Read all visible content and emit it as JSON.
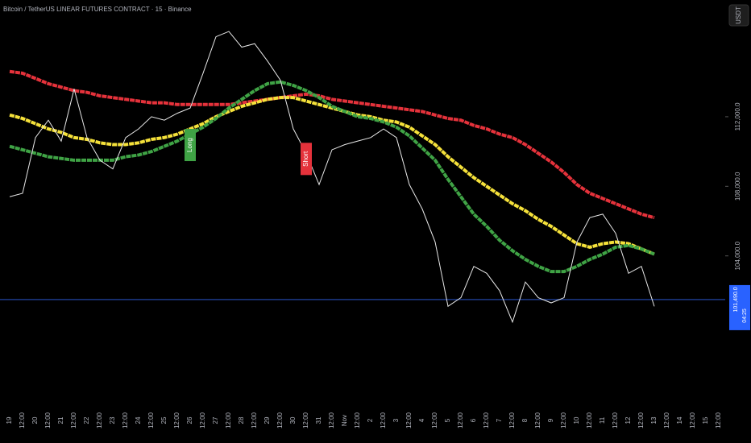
{
  "chart_data": {
    "type": "line",
    "title": "Bitcoin / TetherUS LINEAR FUTURES CONTRACT · 15 · Binance",
    "currency_button": "USDT",
    "categories": [
      "19",
      "12:00",
      "20",
      "12:00",
      "21",
      "12:00",
      "22",
      "12:00",
      "23",
      "12:00",
      "24",
      "12:00",
      "25",
      "12:00",
      "26",
      "12:00",
      "27",
      "12:00",
      "28",
      "12:00",
      "29",
      "12:00",
      "30",
      "12:00",
      "31",
      "12:00",
      "Nov",
      "12:00",
      "2",
      "12:00",
      "3",
      "12:00",
      "4",
      "12:00",
      "5",
      "12:00",
      "6",
      "12:00",
      "7",
      "12:00",
      "8",
      "12:00",
      "9",
      "12:00",
      "10",
      "12:00",
      "11",
      "12:00",
      "12",
      "12:00",
      "13",
      "12:00",
      "14",
      "12:00",
      "15",
      "12:00"
    ],
    "ylim": [
      95560,
      118710
    ],
    "yticks": [
      {
        "value": 104000,
        "label": "104,000.0"
      },
      {
        "value": 108000,
        "label": "108,000.0"
      },
      {
        "value": 112000,
        "label": "112,000.0"
      }
    ],
    "grid": false,
    "series": [
      {
        "color": "#e5323b",
        "width": 4,
        "values": [
          114600,
          114500,
          114200,
          113900,
          113700,
          113500,
          113400,
          113200,
          113100,
          113000,
          112900,
          112800,
          112800,
          112700,
          112700,
          112700,
          112700,
          112700,
          112800,
          112900,
          113000,
          113100,
          113200,
          113300,
          113200,
          113000,
          112900,
          112800,
          112700,
          112600,
          112500,
          112400,
          112300,
          112100,
          111900,
          111800,
          111500,
          111300,
          111000,
          110800,
          110400,
          109900,
          109400,
          108800,
          108100,
          107600,
          107300,
          107000,
          106700,
          106400,
          106200,
          null,
          null,
          null,
          null,
          null
        ]
      },
      {
        "color": "#f5e13a",
        "width": 4,
        "values": [
          112100,
          111900,
          111600,
          111300,
          111100,
          110800,
          110700,
          110500,
          110400,
          110400,
          110500,
          110700,
          110800,
          111000,
          111300,
          111600,
          112000,
          112300,
          112600,
          112800,
          113000,
          113100,
          113100,
          112900,
          112700,
          112500,
          112300,
          112100,
          112000,
          111800,
          111700,
          111400,
          110900,
          110400,
          109700,
          109100,
          108500,
          108000,
          107500,
          107000,
          106600,
          106100,
          105700,
          105200,
          104700,
          104500,
          104700,
          104800,
          104700,
          104400,
          104100,
          null,
          null,
          null,
          null,
          null
        ]
      },
      {
        "color": "#3fa345",
        "width": 4,
        "values": [
          110300,
          110100,
          109900,
          109700,
          109600,
          109500,
          109500,
          109500,
          109500,
          109700,
          109800,
          110000,
          110300,
          110600,
          111000,
          111400,
          111900,
          112500,
          113000,
          113500,
          113900,
          114000,
          113800,
          113500,
          113100,
          112600,
          112300,
          112000,
          111900,
          111700,
          111400,
          110900,
          110200,
          109500,
          108400,
          107400,
          106400,
          105700,
          104900,
          104300,
          103800,
          103400,
          103100,
          103100,
          103400,
          103800,
          104100,
          104500,
          104600,
          104400,
          104100,
          null,
          null,
          null,
          null,
          null
        ]
      },
      {
        "color": "#e8e8e8",
        "width": 1,
        "values": [
          107400,
          107600,
          110800,
          111800,
          110600,
          113600,
          110800,
          109500,
          109000,
          110800,
          111300,
          112000,
          111800,
          112200,
          112500,
          114500,
          116600,
          116900,
          116000,
          116200,
          115200,
          114100,
          111300,
          109900,
          108100,
          110100,
          110400,
          110600,
          110800,
          111300,
          110800,
          108100,
          106700,
          104800,
          101100,
          101600,
          103400,
          103000,
          102000,
          100200,
          102500,
          101600,
          101300,
          101600,
          104800,
          106200,
          106400,
          105300,
          103000,
          103400,
          101100,
          null,
          null,
          null,
          null,
          null
        ]
      }
    ],
    "last_price": {
      "value": 101490,
      "label": "101,490.0",
      "countdown": "04:25",
      "color": "#2962ff"
    },
    "annotations": [
      {
        "text": "Long",
        "at": 14,
        "value": 111300,
        "color": "#3fa345"
      },
      {
        "text": "Short",
        "at": 23,
        "value": 110500,
        "color": "#e5323b"
      }
    ]
  }
}
